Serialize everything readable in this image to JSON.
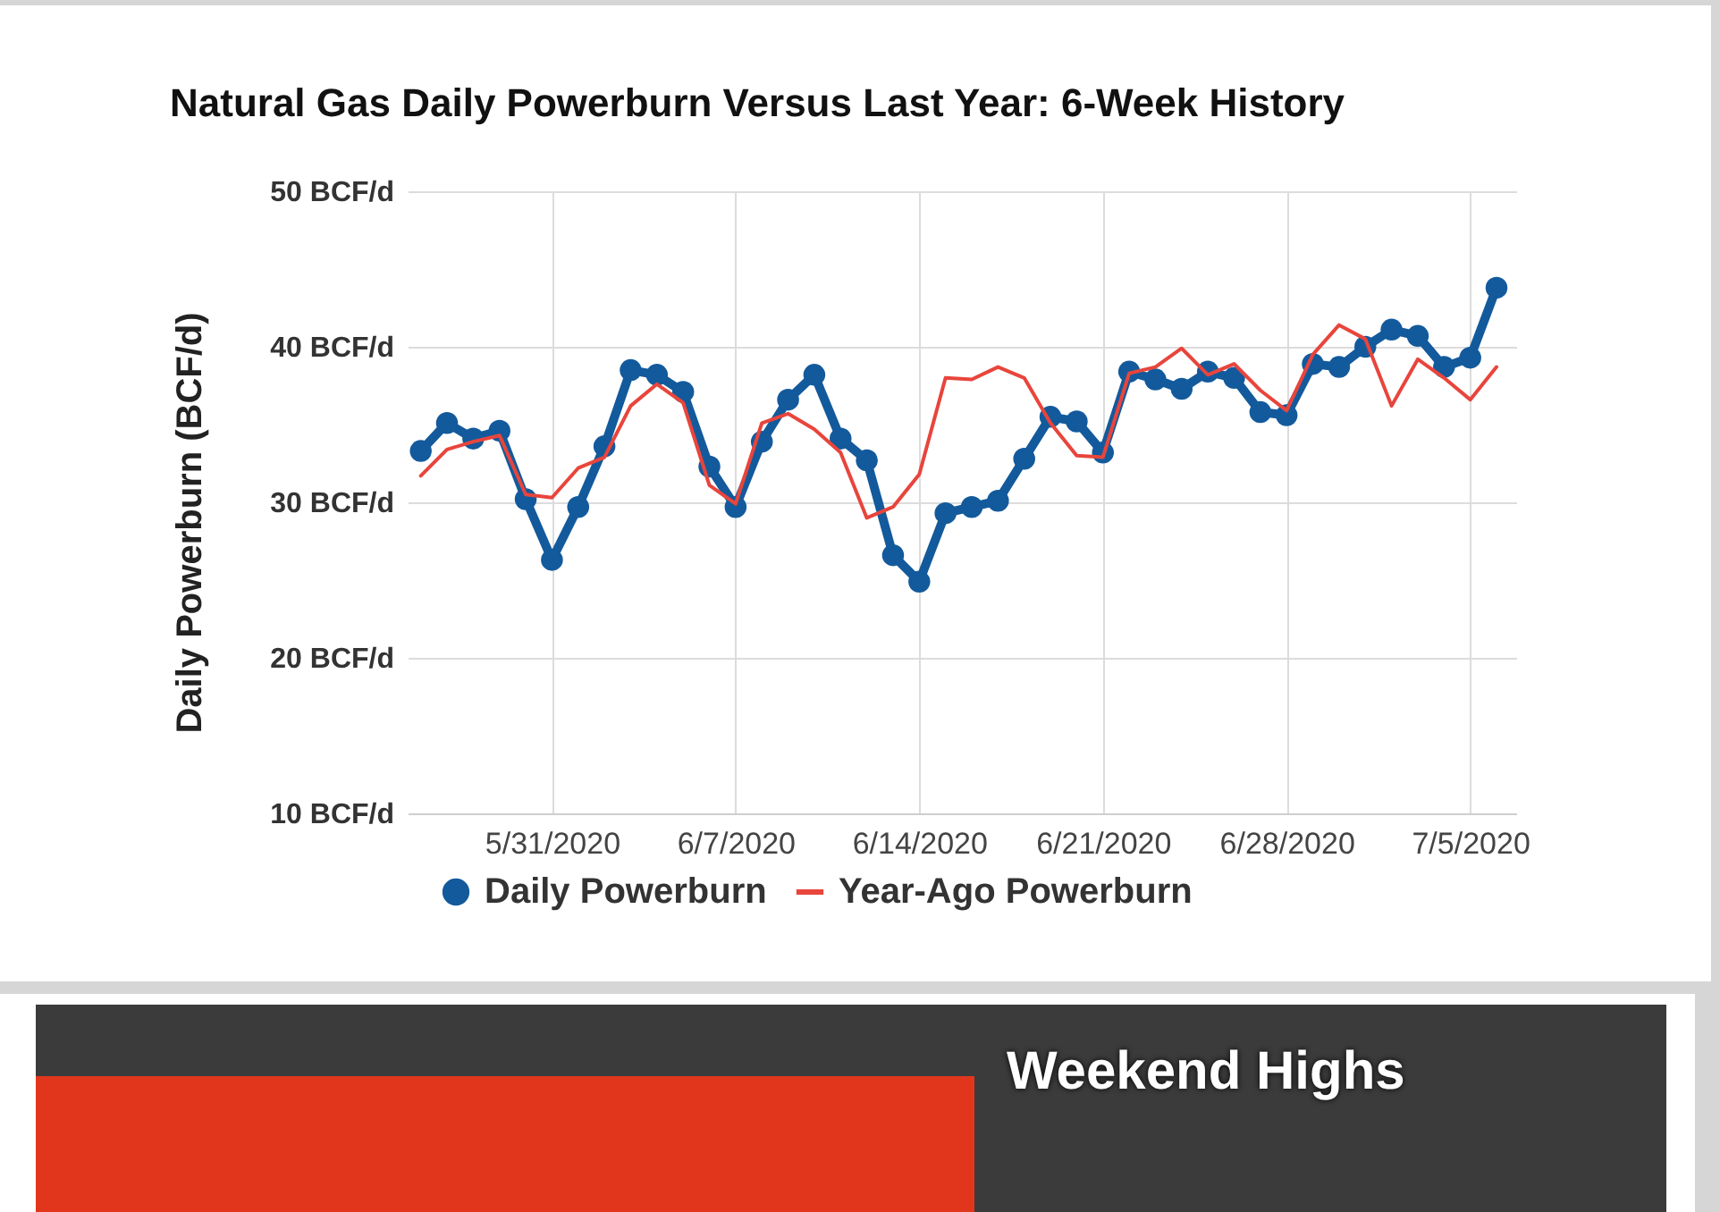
{
  "chart_data": {
    "type": "line",
    "title": "Natural Gas Daily Powerburn Versus Last Year: 6-Week History",
    "ylabel": "Daily Powerburn (BCF/d)",
    "x": [
      "2020-05-26",
      "2020-05-27",
      "2020-05-28",
      "2020-05-29",
      "2020-05-30",
      "2020-05-31",
      "2020-06-01",
      "2020-06-02",
      "2020-06-03",
      "2020-06-04",
      "2020-06-05",
      "2020-06-06",
      "2020-06-07",
      "2020-06-08",
      "2020-06-09",
      "2020-06-10",
      "2020-06-11",
      "2020-06-12",
      "2020-06-13",
      "2020-06-14",
      "2020-06-15",
      "2020-06-16",
      "2020-06-17",
      "2020-06-18",
      "2020-06-19",
      "2020-06-20",
      "2020-06-21",
      "2020-06-22",
      "2020-06-23",
      "2020-06-24",
      "2020-06-25",
      "2020-06-26",
      "2020-06-27",
      "2020-06-28",
      "2020-06-29",
      "2020-06-30",
      "2020-07-01",
      "2020-07-02",
      "2020-07-03",
      "2020-07-04",
      "2020-07-05",
      "2020-07-06"
    ],
    "series": [
      {
        "name": "Daily Powerburn",
        "color": "#135a9c",
        "marker": "circle",
        "values": [
          33.3,
          35.1,
          34.1,
          34.6,
          30.2,
          26.3,
          29.7,
          33.6,
          38.5,
          38.2,
          37.1,
          32.3,
          29.7,
          33.9,
          36.6,
          38.2,
          34.1,
          32.7,
          26.6,
          24.9,
          29.3,
          29.7,
          30.1,
          32.8,
          35.5,
          35.2,
          33.2,
          38.4,
          37.9,
          37.3,
          38.4,
          38.0,
          35.8,
          35.6,
          38.9,
          38.7,
          40.0,
          41.1,
          40.7,
          38.7,
          39.3,
          43.8
        ]
      },
      {
        "name": "Year-Ago Powerburn",
        "color": "#e8453c",
        "marker": "none",
        "values": [
          31.7,
          33.4,
          33.9,
          34.3,
          30.5,
          30.3,
          32.2,
          32.9,
          36.2,
          37.6,
          36.4,
          31.1,
          29.9,
          35.1,
          35.7,
          34.7,
          33.2,
          29.0,
          29.7,
          31.8,
          38.0,
          37.9,
          38.7,
          38.0,
          35.1,
          33.0,
          32.9,
          38.3,
          38.7,
          39.9,
          38.2,
          38.9,
          37.2,
          35.9,
          39.5,
          41.4,
          40.5,
          36.2,
          39.2,
          38.0,
          36.6,
          38.7
        ]
      }
    ],
    "xlim": [
      "2020-05-25T12:00",
      "2020-07-06T18:00"
    ],
    "xticks": [
      {
        "value": "2020-05-31",
        "label": "5/31/2020"
      },
      {
        "value": "2020-06-07",
        "label": "6/7/2020"
      },
      {
        "value": "2020-06-14",
        "label": "6/14/2020"
      },
      {
        "value": "2020-06-21",
        "label": "6/21/2020"
      },
      {
        "value": "2020-06-28",
        "label": "6/28/2020"
      },
      {
        "value": "2020-07-05",
        "label": "7/5/2020"
      }
    ],
    "ylim": [
      10,
      50
    ],
    "yticks": [
      {
        "value": 10,
        "label": "10 BCF/d"
      },
      {
        "value": 20,
        "label": "20 BCF/d"
      },
      {
        "value": 30,
        "label": "30 BCF/d"
      },
      {
        "value": 40,
        "label": "40 BCF/d"
      },
      {
        "value": 50,
        "label": "50 BCF/d"
      }
    ],
    "grid": true,
    "legend": "bottom",
    "line_style": "solid",
    "annotations": [
      "Weekend Highs"
    ]
  }
}
